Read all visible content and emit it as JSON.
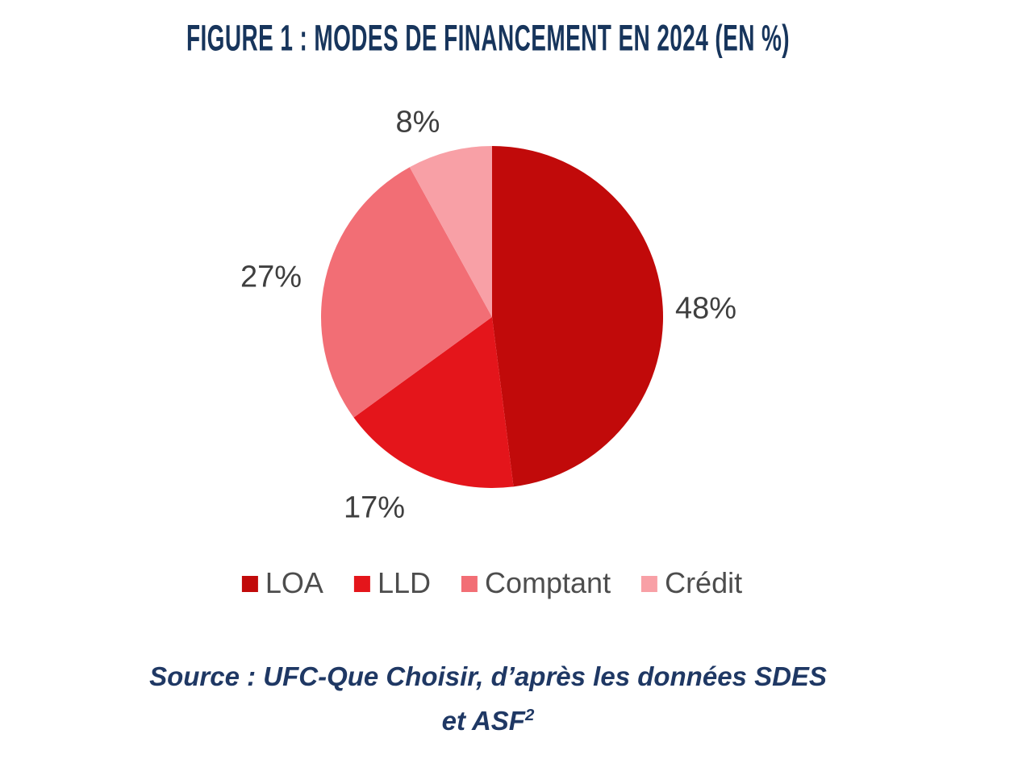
{
  "figure": {
    "title": "FIGURE 1 : MODES DE FINANCEMENT EN 2024 (EN %)",
    "source_line1": "Source : UFC-Que Choisir, d’après les données SDES",
    "source_line2_base": "et ASF",
    "source_line2_sup": "2"
  },
  "chart_data": {
    "type": "pie",
    "title": "Figure 1 : Modes de financement en 2024 (en %)",
    "categories": [
      "LOA",
      "LLD",
      "Comptant",
      "Crédit"
    ],
    "values": [
      48,
      17,
      27,
      8
    ],
    "unit": "%",
    "data_labels": [
      "48%",
      "17%",
      "27%",
      "8%"
    ],
    "colors": [
      "#C10A0A",
      "#E4151B",
      "#F26E75",
      "#F8A0A6"
    ],
    "start_angle_deg": 0,
    "direction": "clockwise",
    "legend_position": "bottom",
    "label_color": "#3F3F3F",
    "background": "#FFFFFF"
  },
  "legend": {
    "items": [
      {
        "label": "LOA",
        "color": "#C10A0A"
      },
      {
        "label": "LLD",
        "color": "#E4151B"
      },
      {
        "label": "Comptant",
        "color": "#F26E75"
      },
      {
        "label": "Crédit",
        "color": "#F8A0A6"
      }
    ]
  },
  "theme": {
    "title_color": "#17355C",
    "source_color": "#1F3864",
    "legend_text_color": "#4D4D4D"
  }
}
